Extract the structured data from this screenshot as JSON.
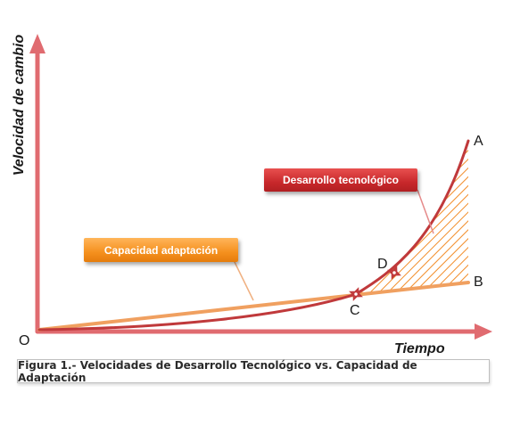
{
  "axes": {
    "y_label": "Velocidad de cambio",
    "x_label": "Tiempo"
  },
  "points": {
    "origin": "O",
    "a": "A",
    "b": "B",
    "c": "C",
    "d": "D"
  },
  "callouts": {
    "technology": "Desarrollo tecnológico",
    "adaptation": "Capacidad adaptación"
  },
  "caption": "Figura 1.- Velocidades de Desarrollo Tecnológico vs. Capacidad de Adaptación",
  "colors": {
    "axis": "#e06b70",
    "technology_curve": "#c0393b",
    "adaptation_line": "#f0a060",
    "hatch": "#f28c28",
    "callout_technology": "#c8282b",
    "callout_adaptation": "#f5901e"
  }
}
